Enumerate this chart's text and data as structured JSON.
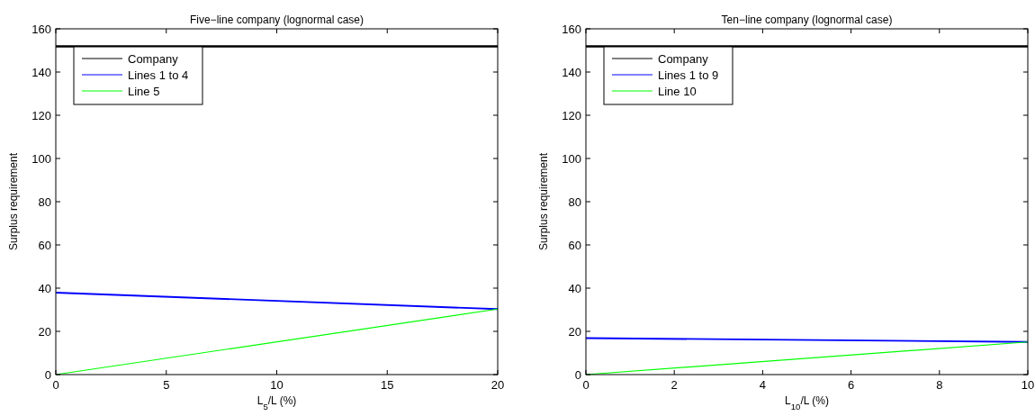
{
  "chart_data": [
    {
      "type": "line",
      "title": "Five−line company (lognormal case)",
      "xlabel": "L$_{5}$/L (%)",
      "ylabel": "Surplus requirement",
      "x": [
        0,
        20
      ],
      "xlim": [
        0,
        20
      ],
      "xticks": [
        0,
        5,
        10,
        15,
        20
      ],
      "ylim": [
        0,
        160
      ],
      "yticks": [
        0,
        20,
        40,
        60,
        80,
        100,
        120,
        140,
        160
      ],
      "legend": "top left",
      "grid": false,
      "series": [
        {
          "name": "Company",
          "color": "#000000",
          "values": [
            151.9,
            151.9
          ]
        },
        {
          "name": "Lines 1 to 4",
          "color": "#0000ff",
          "values": [
            37.9,
            30.3
          ]
        },
        {
          "name": "Line 5",
          "color": "#00ff00",
          "values": [
            0,
            30.3
          ]
        }
      ]
    },
    {
      "type": "line",
      "title": "Ten−line company (lognormal case)",
      "xlabel": "L$_{10}$/L (%)",
      "ylabel": "Surplus requirement",
      "x": [
        0,
        10
      ],
      "xlim": [
        0,
        10
      ],
      "xticks": [
        0,
        2,
        4,
        6,
        8,
        10
      ],
      "ylim": [
        0,
        160
      ],
      "yticks": [
        0,
        20,
        40,
        60,
        80,
        100,
        120,
        140,
        160
      ],
      "legend": "top left",
      "grid": false,
      "series": [
        {
          "name": "Company",
          "color": "#000000",
          "values": [
            151.9,
            151.9
          ]
        },
        {
          "name": "Lines 1 to 9",
          "color": "#0000ff",
          "values": [
            16.9,
            15.1
          ]
        },
        {
          "name": "Line 10",
          "color": "#00ff00",
          "values": [
            0,
            15.1
          ]
        }
      ]
    }
  ]
}
